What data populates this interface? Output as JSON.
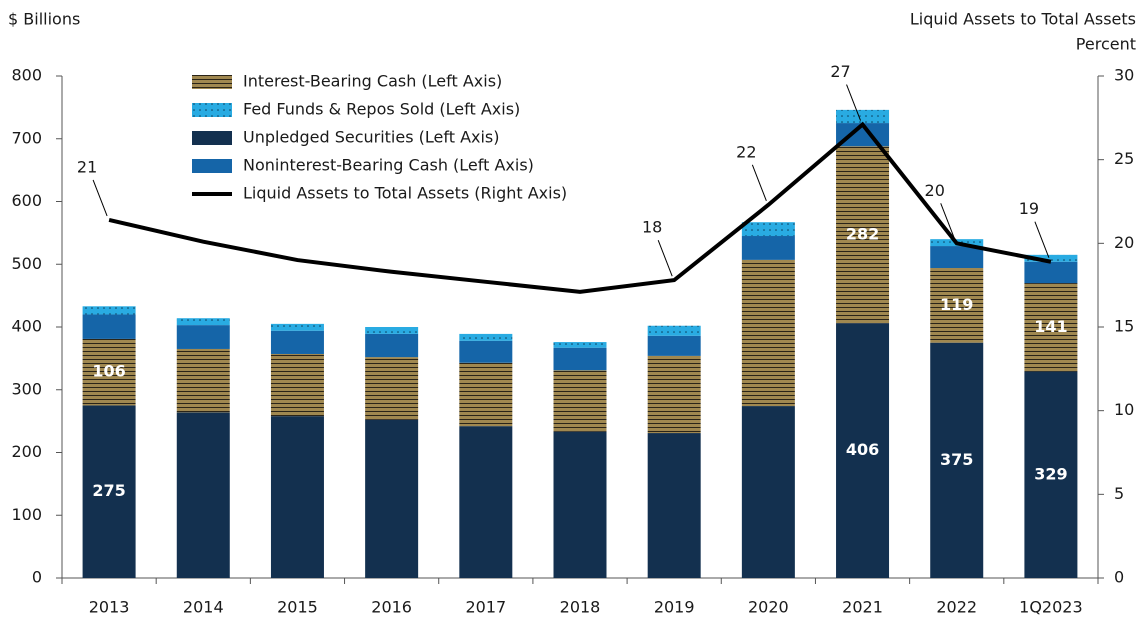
{
  "chart_data": {
    "type": "stacked_bar_line",
    "y_label": "$ Billions",
    "y2_label": [
      "Liquid Assets to Total Assets",
      "Percent"
    ],
    "categories": [
      "2013",
      "2014",
      "2015",
      "2016",
      "2017",
      "2018",
      "2019",
      "2020",
      "2021",
      "2022",
      "1Q2023"
    ],
    "ylim": [
      0,
      800
    ],
    "yticks": [
      0,
      100,
      200,
      300,
      400,
      500,
      600,
      700,
      800
    ],
    "y2lim": [
      0,
      30
    ],
    "y2ticks": [
      0,
      5,
      10,
      15,
      20,
      25,
      30
    ],
    "series": [
      {
        "name": "Unpledged Securities (Left Axis)",
        "color": "#13304f",
        "pattern": "solid",
        "values": [
          275,
          264,
          258,
          252,
          242,
          233,
          231,
          274,
          406,
          375,
          329
        ],
        "value_labels": [
          "275",
          null,
          null,
          null,
          null,
          null,
          null,
          null,
          "406",
          "375",
          "329"
        ]
      },
      {
        "name": "Interest-Bearing Cash (Left Axis)",
        "color": "#a08850",
        "pattern": "hlines",
        "values": [
          106,
          101,
          99,
          100,
          101,
          98,
          123,
          233,
          282,
          119,
          141
        ],
        "value_labels": [
          "106",
          null,
          null,
          null,
          null,
          null,
          null,
          null,
          "282",
          "119",
          "141"
        ]
      },
      {
        "name": "Noninterest-Bearing Cash (Left Axis)",
        "color": "#1565a8",
        "pattern": "solid",
        "values": [
          39,
          38,
          37,
          37,
          35,
          36,
          32,
          38,
          37,
          35,
          34
        ]
      },
      {
        "name": "Fed Funds & Repos Sold (Left Axis)",
        "color": "#29abe2",
        "pattern": "dots",
        "values": [
          13,
          11,
          11,
          11,
          11,
          9,
          16,
          22,
          21,
          11,
          11
        ]
      },
      {
        "name": "Liquid Assets to Total Assets (Right Axis)",
        "color": "#000000",
        "axis": "y2",
        "kind": "line",
        "values": [
          21.4,
          20.1,
          19.0,
          18.3,
          17.7,
          17.1,
          17.8,
          22.3,
          27.1,
          20.0,
          18.9
        ],
        "value_labels": [
          "21",
          null,
          null,
          null,
          null,
          null,
          "18",
          "22",
          "27",
          "20",
          "19"
        ]
      }
    ],
    "legend_order": [
      1,
      3,
      0,
      2,
      4
    ]
  }
}
